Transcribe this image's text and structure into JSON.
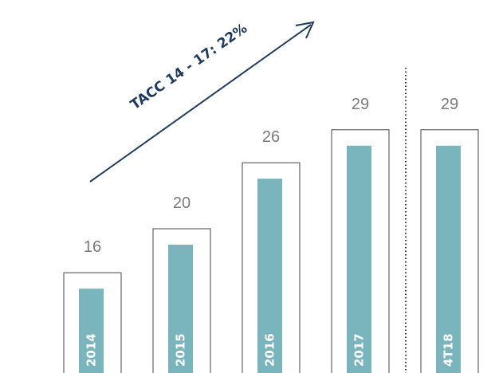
{
  "chart_data": {
    "type": "bar",
    "annotation": "TACC 14 - 17: 22%",
    "categories": [
      "2014",
      "2015",
      "2016",
      "2017",
      "4T18"
    ],
    "values": [
      16,
      20,
      26,
      29,
      29
    ],
    "color": "#7ab5bd"
  }
}
